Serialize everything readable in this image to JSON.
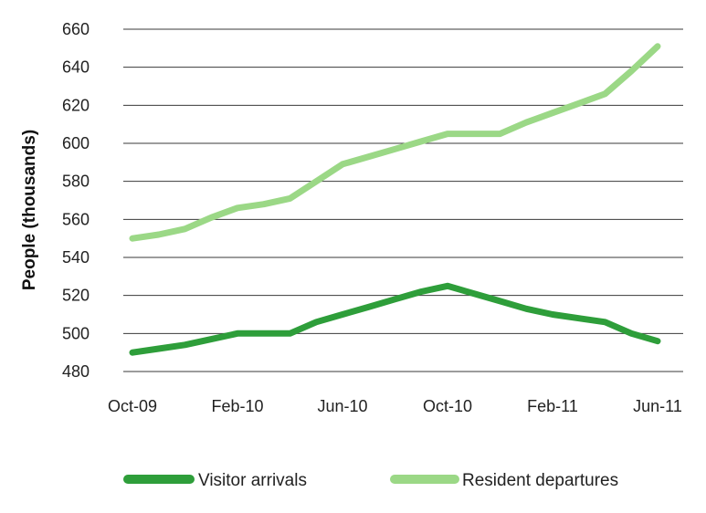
{
  "chart_data": {
    "type": "line",
    "ylabel": "People (thousands)",
    "xlabel": "",
    "ylim": [
      480,
      660
    ],
    "yticks": [
      480,
      500,
      520,
      540,
      560,
      580,
      600,
      620,
      640,
      660
    ],
    "xtick_labels": [
      "Oct-09",
      "Feb-10",
      "Jun-10",
      "Oct-10",
      "Feb-11",
      "Jun-11"
    ],
    "x": [
      "Oct-09",
      "Nov-09",
      "Dec-09",
      "Jan-10",
      "Feb-10",
      "Mar-10",
      "Apr-10",
      "May-10",
      "Jun-10",
      "Jul-10",
      "Aug-10",
      "Sep-10",
      "Oct-10",
      "Nov-10",
      "Dec-10",
      "Jan-11",
      "Feb-11",
      "Mar-11",
      "Apr-11",
      "May-11",
      "Jun-11"
    ],
    "series": [
      {
        "name": "Visitor arrivals",
        "color": "#2e9e3a",
        "values": [
          490,
          492,
          494,
          497,
          500,
          500,
          500,
          506,
          510,
          514,
          518,
          522,
          525,
          521,
          517,
          513,
          510,
          508,
          506,
          500,
          496
        ]
      },
      {
        "name": "Resident departures",
        "color": "#9bd886",
        "values": [
          550,
          552,
          555,
          561,
          566,
          568,
          571,
          580,
          589,
          593,
          597,
          601,
          605,
          605,
          605,
          611,
          616,
          621,
          626,
          638,
          651
        ]
      }
    ],
    "grid": true,
    "legend_position": "bottom"
  }
}
